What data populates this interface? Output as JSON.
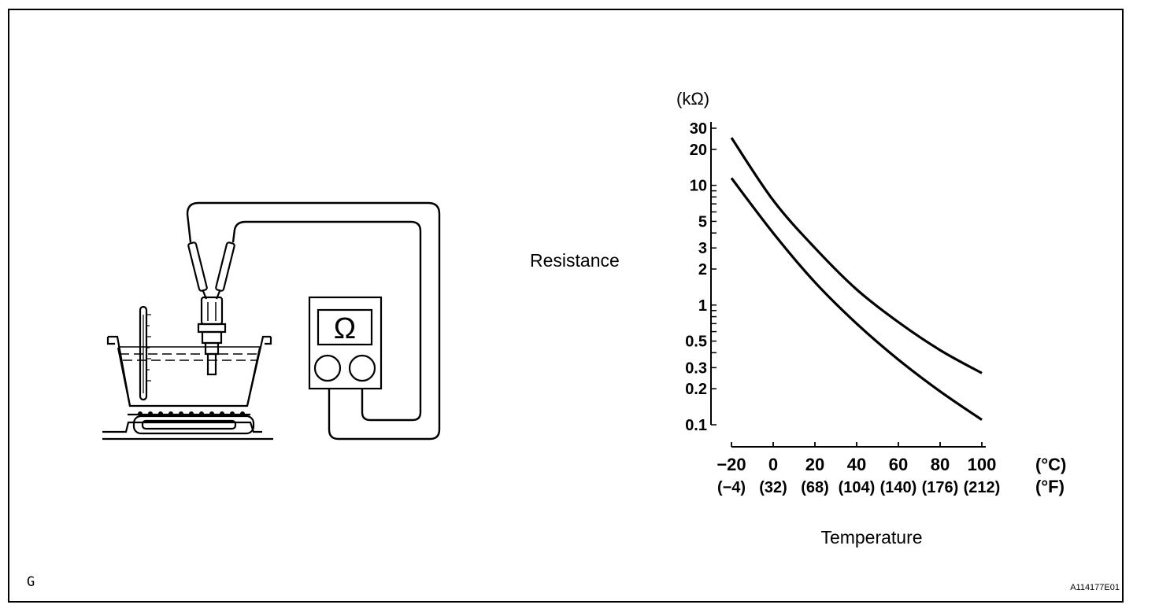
{
  "meter": {
    "symbol": "Ω"
  },
  "chart": {
    "y_axis_title": "Resistance",
    "y_unit": "(kΩ)",
    "y_tick_labels": [
      "30",
      "20",
      "10",
      "5",
      "3",
      "2",
      "1",
      "0.5",
      "0.3",
      "0.2",
      "0.1"
    ],
    "x_axis_title": "Temperature",
    "x_tick_labels_c": [
      "−20",
      "0",
      "20",
      "40",
      "60",
      "80",
      "100"
    ],
    "x_tick_labels_f": [
      "(−4)",
      "(32)",
      "(68)",
      "(104)",
      "(140)",
      "(176)",
      "(212)"
    ],
    "x_unit_c": "(°C)",
    "x_unit_f": "(°F)"
  },
  "chart_data": {
    "type": "line",
    "xlabel": "Temperature",
    "ylabel": "Resistance",
    "x_units": [
      "°C",
      "°F"
    ],
    "y_units": "kΩ",
    "y_scale": "log",
    "xlim": [
      -20,
      100
    ],
    "ylim": [
      0.1,
      30
    ],
    "series": [
      {
        "x": [
          -20,
          0,
          20,
          40,
          60,
          80,
          100
        ],
        "y": [
          25,
          7.5,
          3.0,
          1.35,
          0.72,
          0.42,
          0.27
        ]
      },
      {
        "x": [
          -20,
          0,
          20,
          40,
          60,
          80,
          100
        ],
        "y": [
          11.5,
          4.0,
          1.55,
          0.7,
          0.35,
          0.19,
          0.11
        ]
      }
    ]
  },
  "footer": {
    "code": "G",
    "figure_id": "A114177E01"
  }
}
